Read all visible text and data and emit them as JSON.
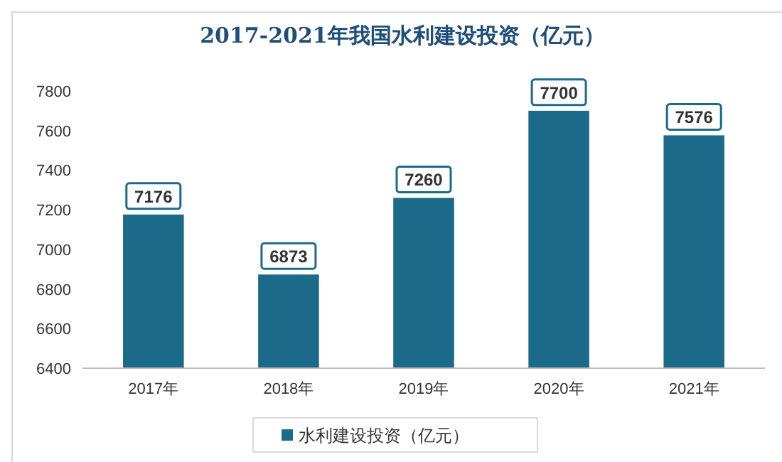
{
  "chart_data": {
    "type": "bar",
    "title": "2017-2021年我国水利建设投资（亿元）",
    "categories": [
      "2017年",
      "2018年",
      "2019年",
      "2020年",
      "2021年"
    ],
    "series": [
      {
        "name": "水利建设投资（亿元）",
        "color": "#1b6a8a",
        "values": [
          7176,
          6873,
          7260,
          7700,
          7576
        ]
      }
    ],
    "ylim": [
      6400,
      7800
    ],
    "yticks": [
      6400,
      6600,
      6800,
      7000,
      7200,
      7400,
      7600,
      7800
    ],
    "grid": false,
    "data_labels": true,
    "legend": "bottom"
  }
}
